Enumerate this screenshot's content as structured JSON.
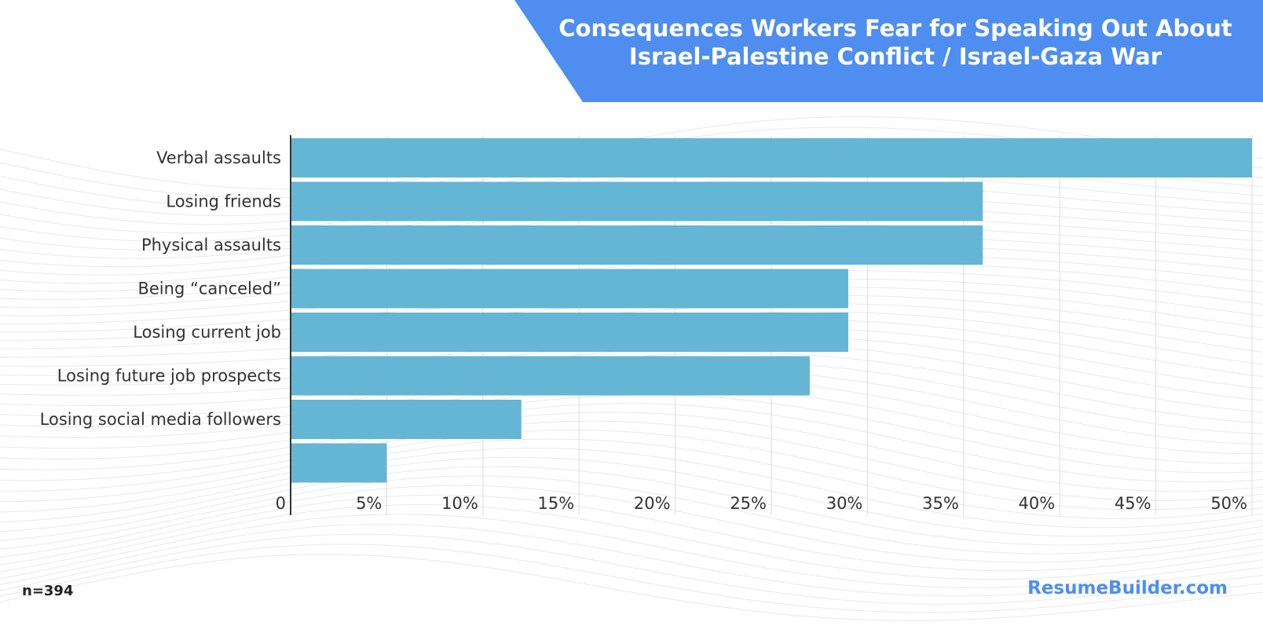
{
  "title_lines": [
    "Consequences Workers Fear for Speaking Out About",
    "Israel-Palestine Conflict / Israel-Gaza War"
  ],
  "footnote": "n=394",
  "brand": "ResumeBuilder.com",
  "colors": {
    "banner": "#4f8ef0",
    "bar": "#65b5d5",
    "grid": "#dcdcdc",
    "axis": "#333333"
  },
  "chart_data": {
    "type": "bar",
    "orientation": "horizontal",
    "categories": [
      "Verbal assaults",
      "Losing friends",
      "Physical assaults",
      "Being “canceled”",
      "Losing current job",
      "Losing future job prospects",
      "Losing social media followers",
      ""
    ],
    "values": [
      50,
      36,
      36,
      29,
      29,
      27,
      12,
      5
    ],
    "xlim": [
      0,
      50
    ],
    "x_ticks": [
      0,
      5,
      10,
      15,
      20,
      25,
      30,
      35,
      40,
      45,
      50
    ],
    "x_tick_labels": [
      "0",
      "5%",
      "10%",
      "15%",
      "20%",
      "25%",
      "30%",
      "35%",
      "40%",
      "45%",
      "50%"
    ],
    "grid": true
  }
}
